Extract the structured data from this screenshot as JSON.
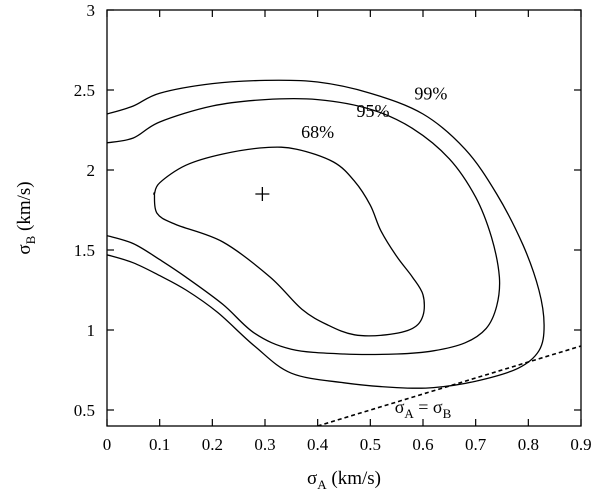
{
  "chart_data": {
    "type": "line",
    "title": "",
    "xlabel": {
      "symbol": "σ",
      "sub": "A",
      "unit": " (km/s)"
    },
    "ylabel": {
      "symbol": "σ",
      "sub": "B",
      "unit": " (km/s)"
    },
    "xlim": [
      0,
      0.9
    ],
    "ylim": [
      0.4,
      3.0
    ],
    "x_ticks": [
      0,
      0.1,
      0.2,
      0.3,
      0.4,
      0.5,
      0.6,
      0.7,
      0.8,
      0.9
    ],
    "x_tick_labels": [
      "0",
      "0.1",
      "0.2",
      "0.3",
      "0.4",
      "0.5",
      "0.6",
      "0.7",
      "0.8",
      "0.9"
    ],
    "y_ticks": [
      0.5,
      1.0,
      1.5,
      2.0,
      2.5,
      3.0
    ],
    "y_tick_labels": [
      "0.5",
      "1",
      "1.5",
      "2",
      "2.5",
      "3"
    ],
    "grid": false,
    "best_fit": {
      "x": 0.295,
      "y": 1.85,
      "marker": "+"
    },
    "contours": [
      {
        "label": "68%",
        "label_pos": [
          0.4,
          2.2
        ],
        "closed": true,
        "points": [
          [
            0.09,
            1.85
          ],
          [
            0.1,
            1.92
          ],
          [
            0.15,
            2.03
          ],
          [
            0.22,
            2.1
          ],
          [
            0.3,
            2.14
          ],
          [
            0.36,
            2.13
          ],
          [
            0.43,
            2.05
          ],
          [
            0.47,
            1.93
          ],
          [
            0.5,
            1.78
          ],
          [
            0.52,
            1.62
          ],
          [
            0.55,
            1.46
          ],
          [
            0.58,
            1.33
          ],
          [
            0.6,
            1.22
          ],
          [
            0.6,
            1.09
          ],
          [
            0.58,
            1.01
          ],
          [
            0.53,
            0.97
          ],
          [
            0.47,
            0.97
          ],
          [
            0.42,
            1.03
          ],
          [
            0.37,
            1.13
          ],
          [
            0.31,
            1.33
          ],
          [
            0.22,
            1.55
          ],
          [
            0.13,
            1.66
          ],
          [
            0.095,
            1.73
          ],
          [
            0.09,
            1.85
          ]
        ]
      },
      {
        "label": "95%",
        "label_pos": [
          0.505,
          2.33
        ],
        "closed": false,
        "points": [
          [
            [
              0.0,
              2.17
            ],
            [
              0.05,
              2.2
            ],
            [
              0.1,
              2.3
            ],
            [
              0.2,
              2.4
            ],
            [
              0.3,
              2.44
            ],
            [
              0.4,
              2.44
            ],
            [
              0.5,
              2.38
            ],
            [
              0.58,
              2.26
            ],
            [
              0.65,
              2.07
            ],
            [
              0.7,
              1.83
            ],
            [
              0.73,
              1.58
            ],
            [
              0.745,
              1.33
            ],
            [
              0.74,
              1.15
            ],
            [
              0.72,
              1.01
            ],
            [
              0.68,
              0.92
            ],
            [
              0.62,
              0.87
            ],
            [
              0.55,
              0.85
            ],
            [
              0.45,
              0.85
            ],
            [
              0.35,
              0.88
            ],
            [
              0.28,
              0.98
            ],
            [
              0.22,
              1.16
            ],
            [
              0.15,
              1.33
            ],
            [
              0.1,
              1.44
            ],
            [
              0.05,
              1.54
            ],
            [
              0.0,
              1.59
            ]
          ]
        ]
      },
      {
        "label": "99%",
        "label_pos": [
          0.615,
          2.44
        ],
        "closed": false,
        "points": [
          [
            [
              0.0,
              2.35
            ],
            [
              0.05,
              2.4
            ],
            [
              0.1,
              2.48
            ],
            [
              0.2,
              2.54
            ],
            [
              0.3,
              2.56
            ],
            [
              0.4,
              2.55
            ],
            [
              0.5,
              2.48
            ],
            [
              0.6,
              2.35
            ],
            [
              0.68,
              2.13
            ],
            [
              0.74,
              1.85
            ],
            [
              0.79,
              1.53
            ],
            [
              0.82,
              1.25
            ],
            [
              0.83,
              1.03
            ],
            [
              0.82,
              0.87
            ],
            [
              0.78,
              0.76
            ],
            [
              0.7,
              0.68
            ],
            [
              0.62,
              0.64
            ],
            [
              0.55,
              0.64
            ],
            [
              0.45,
              0.67
            ],
            [
              0.35,
              0.73
            ],
            [
              0.28,
              0.9
            ],
            [
              0.21,
              1.11
            ],
            [
              0.15,
              1.25
            ],
            [
              0.1,
              1.34
            ],
            [
              0.05,
              1.42
            ],
            [
              0.0,
              1.47
            ]
          ]
        ]
      }
    ],
    "reference_line": {
      "label": {
        "left": "σ",
        "left_sub": "A",
        "mid": " = σ",
        "right_sub": "B"
      },
      "style": "dashed",
      "points": [
        [
          0.4,
          0.4
        ],
        [
          0.9,
          0.9
        ]
      ],
      "label_pos": [
        0.6,
        0.48
      ]
    }
  }
}
